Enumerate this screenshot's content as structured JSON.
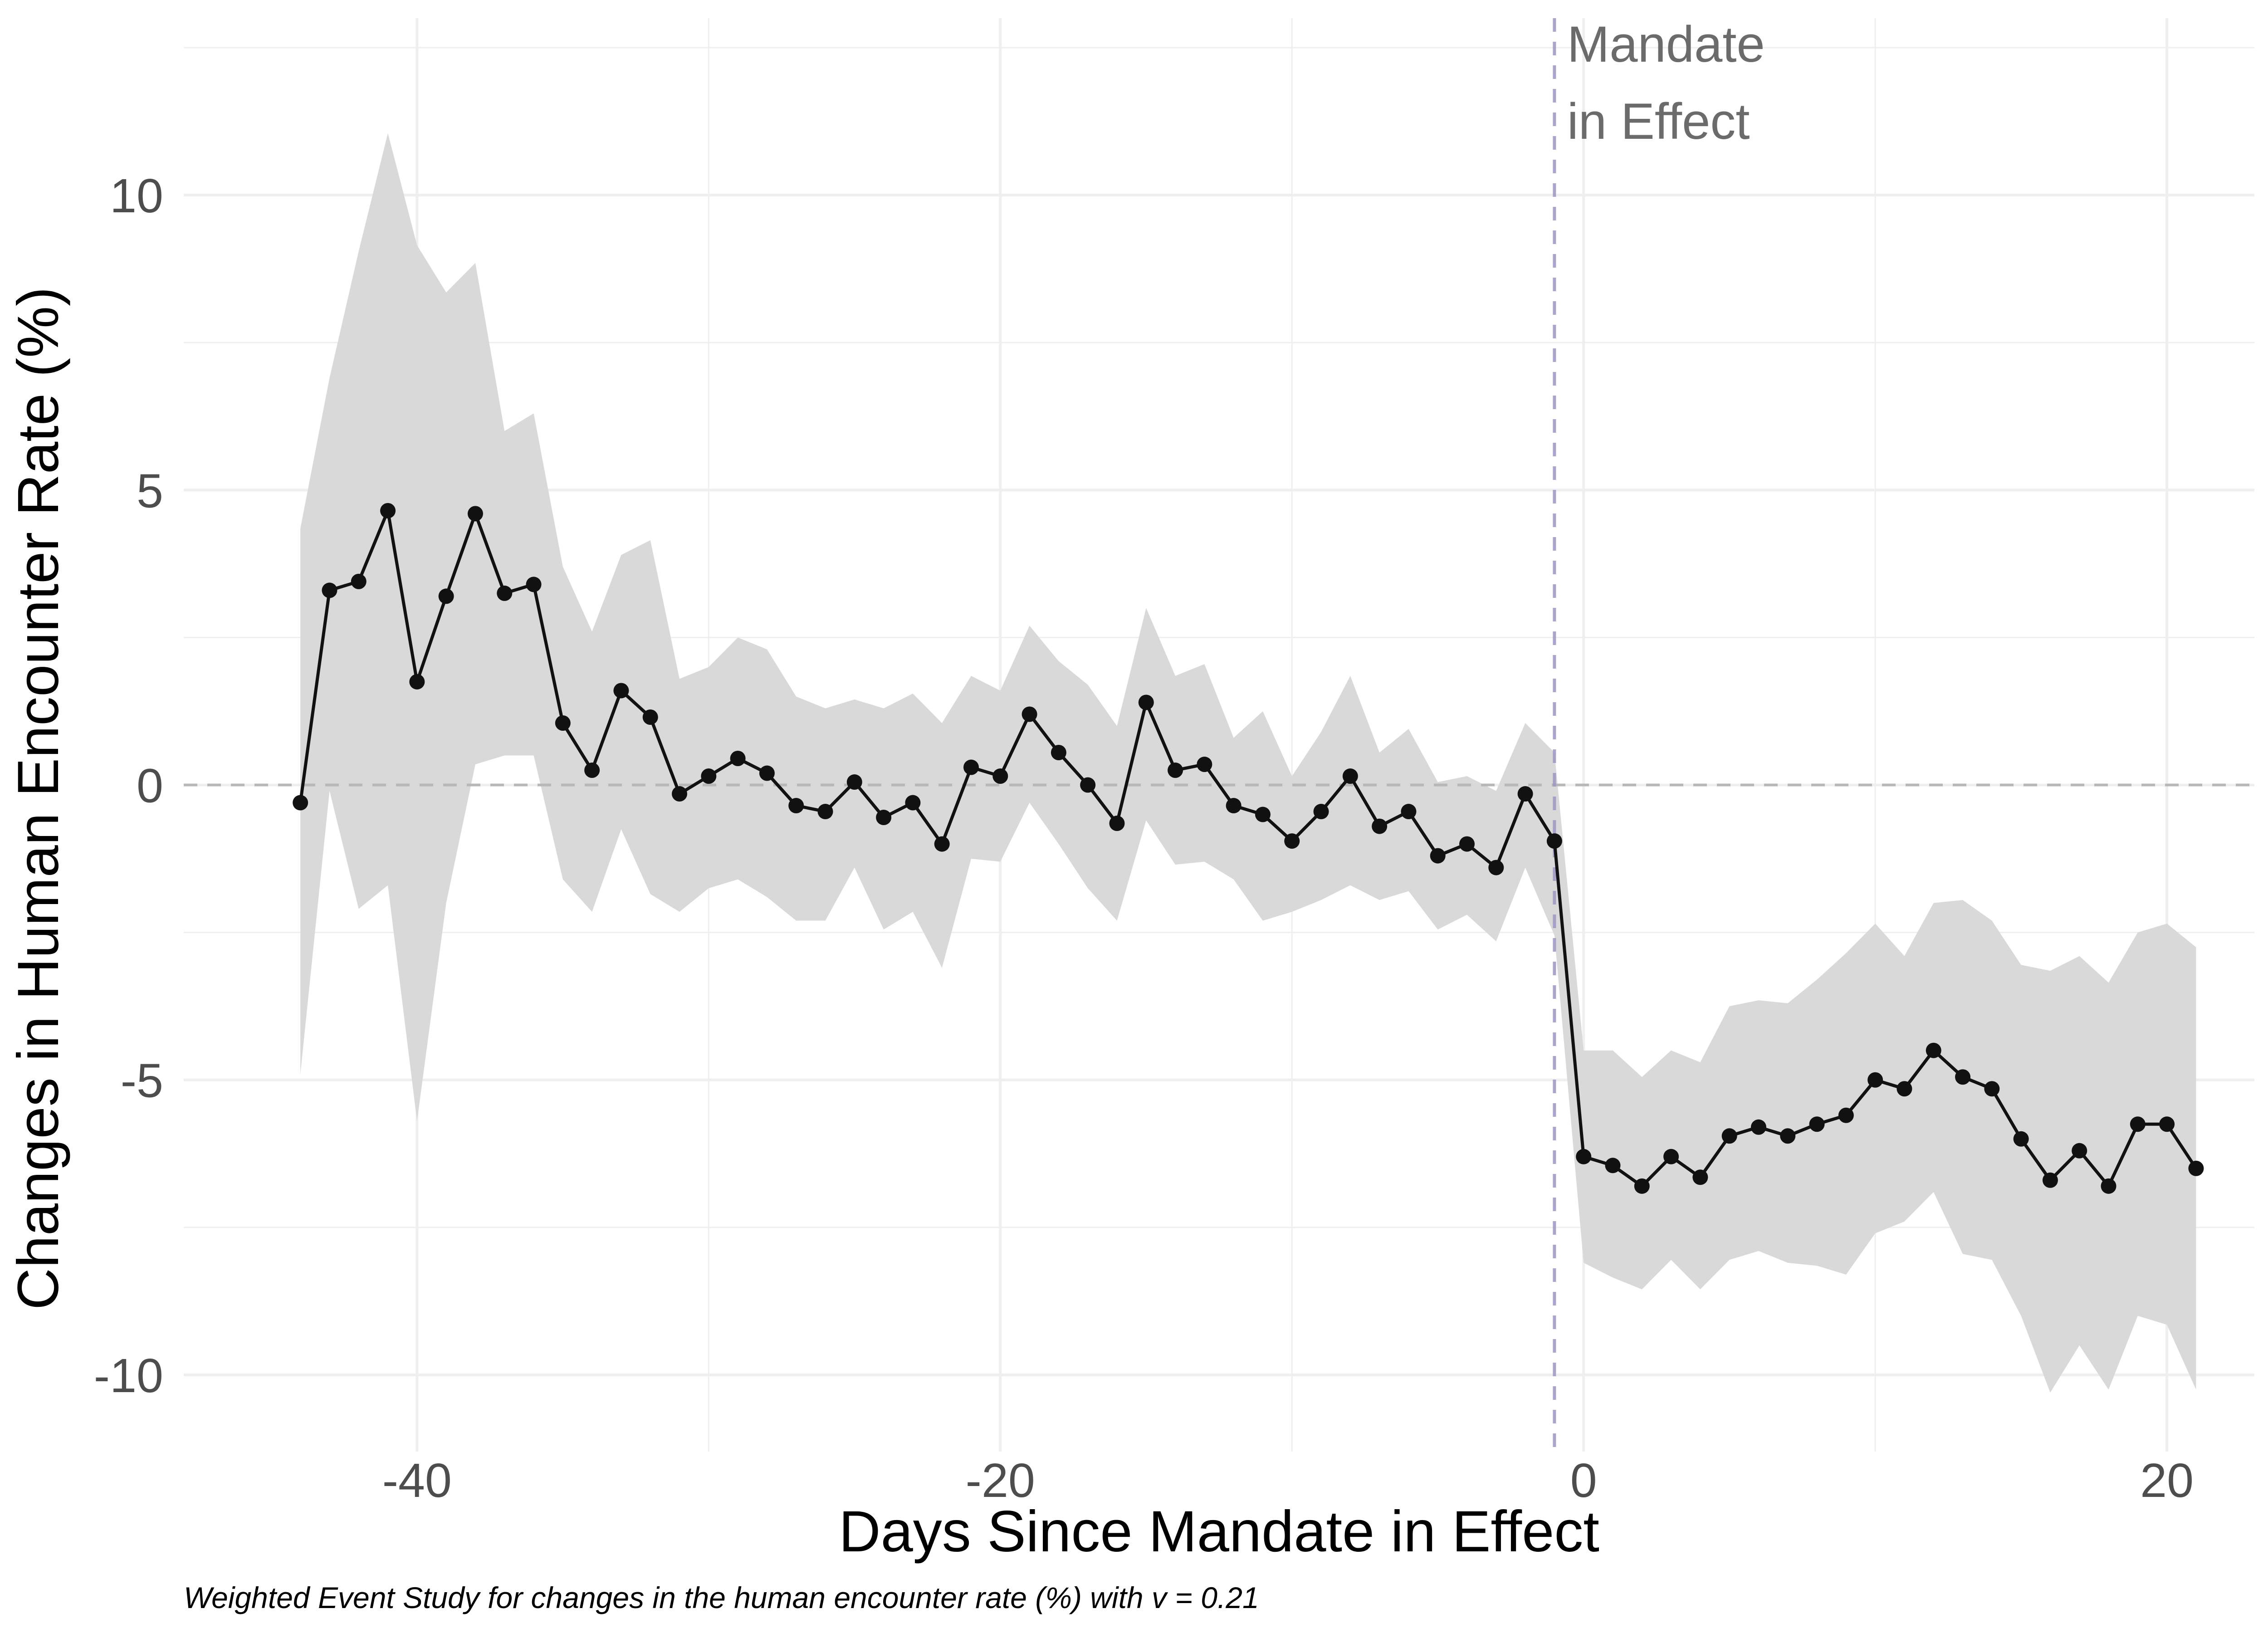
{
  "chart_data": {
    "type": "line",
    "xlabel": "Days Since Mandate in Effect",
    "ylabel": "Changes in Human Encounter Rate (%)",
    "caption": "Weighted Event Study for changes in the human encounter rate (%) with v = 0.21",
    "xlim": [
      -48,
      23
    ],
    "ylim": [
      -11.3,
      13
    ],
    "x_ticks": [
      -40,
      -20,
      0,
      20
    ],
    "x_tick_labels": [
      "-40",
      "-20",
      "0",
      "20"
    ],
    "y_ticks": [
      -10,
      -5,
      0,
      5,
      10
    ],
    "y_tick_labels": [
      "-10",
      "-5",
      "0",
      "5",
      "10"
    ],
    "grid": true,
    "annotation": {
      "lines": [
        "Mandate",
        "in Effect"
      ],
      "x": -1,
      "line_color": "#9e95c4"
    },
    "reference_line_y": 0,
    "colors": {
      "line": "#111111",
      "ribbon": "#d9d9d9",
      "reference": "#b8b8b8",
      "grid": "#efefef"
    },
    "series": [
      {
        "x": [
          -44,
          -43,
          -42,
          -41,
          -40,
          -39,
          -38,
          -37,
          -36,
          -35,
          -34,
          -33,
          -32,
          -31,
          -30,
          -29,
          -28,
          -27,
          -26,
          -25,
          -24,
          -23,
          -22,
          -21,
          -20,
          -19,
          -18,
          -17,
          -16,
          -15,
          -14,
          -13,
          -12,
          -11,
          -10,
          -9,
          -8,
          -7,
          -6,
          -5,
          -4,
          -3,
          -2,
          -1,
          0,
          1,
          2,
          3,
          4,
          5,
          6,
          7,
          8,
          9,
          10,
          11,
          12,
          13,
          14,
          15,
          16,
          17,
          18,
          19,
          20,
          21
        ],
        "y": [
          -0.3,
          3.3,
          3.45,
          4.65,
          1.75,
          3.2,
          4.6,
          3.25,
          3.4,
          1.05,
          0.25,
          1.6,
          1.15,
          -0.15,
          0.15,
          0.45,
          0.2,
          -0.35,
          -0.45,
          0.05,
          -0.55,
          -0.3,
          -1.0,
          0.3,
          0.15,
          1.2,
          0.55,
          0.0,
          -0.65,
          1.4,
          0.25,
          0.35,
          -0.35,
          -0.5,
          -0.95,
          -0.45,
          0.15,
          -0.7,
          -0.45,
          -1.2,
          -1.0,
          -1.4,
          -0.15,
          -0.95,
          -6.3,
          -6.45,
          -6.8,
          -6.3,
          -6.65,
          -5.95,
          -5.8,
          -5.95,
          -5.75,
          -5.6,
          -5.0,
          -5.15,
          -4.5,
          -4.95,
          -5.15,
          -6.0,
          -6.7,
          -6.2,
          -6.8,
          -5.75,
          -5.75,
          -6.5
        ],
        "lower": [
          -4.9,
          -0.1,
          -2.1,
          -1.7,
          -5.7,
          -2.0,
          0.35,
          0.5,
          0.5,
          -1.6,
          -2.15,
          -0.75,
          -1.85,
          -2.15,
          -1.75,
          -1.6,
          -1.9,
          -2.3,
          -2.3,
          -1.4,
          -2.45,
          -2.15,
          -3.1,
          -1.25,
          -1.3,
          -0.3,
          -1.0,
          -1.75,
          -2.3,
          -0.6,
          -1.35,
          -1.3,
          -1.6,
          -2.3,
          -2.15,
          -1.95,
          -1.7,
          -1.95,
          -1.8,
          -2.45,
          -2.2,
          -2.65,
          -1.4,
          -2.55,
          -8.1,
          -8.35,
          -8.55,
          -8.05,
          -8.55,
          -8.05,
          -7.9,
          -8.1,
          -8.15,
          -8.3,
          -7.6,
          -7.4,
          -6.9,
          -7.95,
          -8.05,
          -9.0,
          -10.3,
          -9.5,
          -10.25,
          -9.0,
          -9.15,
          -10.25
        ],
        "upper": [
          4.35,
          6.9,
          9.05,
          11.05,
          9.15,
          8.35,
          8.85,
          6.0,
          6.3,
          3.7,
          2.6,
          3.9,
          4.15,
          1.8,
          2.0,
          2.5,
          2.3,
          1.5,
          1.3,
          1.45,
          1.3,
          1.55,
          1.05,
          1.85,
          1.6,
          2.7,
          2.1,
          1.7,
          1.0,
          3.0,
          1.85,
          2.05,
          0.8,
          1.25,
          0.15,
          0.9,
          1.85,
          0.55,
          0.95,
          0.05,
          0.15,
          -0.1,
          1.05,
          0.55,
          -4.5,
          -4.5,
          -4.95,
          -4.5,
          -4.7,
          -3.75,
          -3.65,
          -3.7,
          -3.3,
          -2.85,
          -2.35,
          -2.9,
          -2.0,
          -1.95,
          -2.3,
          -3.05,
          -3.15,
          -2.9,
          -3.35,
          -2.5,
          -2.35,
          -2.75
        ]
      }
    ]
  }
}
